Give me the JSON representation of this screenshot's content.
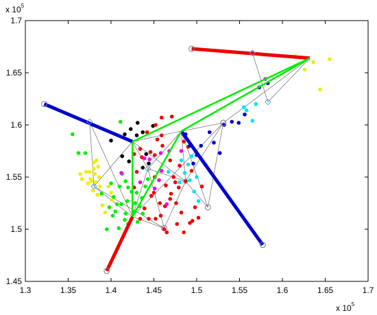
{
  "chart_data": {
    "type": "scatter",
    "title": "",
    "xlabel": "",
    "ylabel": "",
    "x_multiplier": "x 10",
    "y_multiplier": "x 10",
    "multiplier_exponent": "5",
    "xlim": [
      1.3,
      1.7
    ],
    "ylim": [
      1.45,
      1.7
    ],
    "x_ticks": [
      1.3,
      1.35,
      1.4,
      1.45,
      1.5,
      1.55,
      1.6,
      1.65,
      1.7
    ],
    "y_ticks": [
      1.45,
      1.5,
      1.55,
      1.6,
      1.65,
      1.7
    ],
    "grid": false,
    "legend": null,
    "colors": {
      "red": "#ee0000",
      "blue": "#0000cc",
      "green": "#00ee00",
      "black": "#000000",
      "magenta": "#ee00ee",
      "cyan": "#00e5ee",
      "yellow": "#eeee00",
      "gray": "#7a7a7a",
      "marker": "#7a7a90",
      "diamond": "#5aa0c8"
    },
    "clusters": [
      {
        "color": "yellow",
        "points": [
          [
            1.364,
            1.553
          ],
          [
            1.366,
            1.548
          ],
          [
            1.371,
            1.555
          ],
          [
            1.373,
            1.544
          ],
          [
            1.375,
            1.555
          ],
          [
            1.376,
            1.548
          ],
          [
            1.377,
            1.546
          ],
          [
            1.379,
            1.537
          ],
          [
            1.38,
            1.564
          ],
          [
            1.38,
            1.558
          ],
          [
            1.381,
            1.553
          ],
          [
            1.382,
            1.545
          ],
          [
            1.383,
            1.566
          ],
          [
            1.384,
            1.533
          ],
          [
            1.385,
            1.56
          ],
          [
            1.386,
            1.55
          ],
          [
            1.387,
            1.541
          ],
          [
            1.39,
            1.523
          ],
          [
            1.393,
            1.516
          ],
          [
            1.397,
            1.541
          ],
          [
            1.4,
            1.535
          ],
          [
            1.401,
            1.528
          ],
          [
            1.615,
            1.666
          ],
          [
            1.626,
            1.653
          ],
          [
            1.636,
            1.66
          ],
          [
            1.644,
            1.634
          ],
          [
            1.655,
            1.663
          ]
        ]
      },
      {
        "color": "green",
        "points": [
          [
            1.355,
            1.591
          ],
          [
            1.362,
            1.573
          ],
          [
            1.37,
            1.573
          ],
          [
            1.378,
            1.6
          ],
          [
            1.389,
            1.534
          ],
          [
            1.395,
            1.5
          ],
          [
            1.398,
            1.521
          ],
          [
            1.402,
            1.513
          ],
          [
            1.403,
            1.531
          ],
          [
            1.405,
            1.517
          ],
          [
            1.407,
            1.524
          ],
          [
            1.409,
            1.501
          ],
          [
            1.41,
            1.541
          ],
          [
            1.412,
            1.524
          ],
          [
            1.413,
            1.553
          ],
          [
            1.416,
            1.509
          ],
          [
            1.417,
            1.515
          ],
          [
            1.419,
            1.527
          ],
          [
            1.42,
            1.54
          ],
          [
            1.42,
            1.505
          ],
          [
            1.424,
            1.536
          ],
          [
            1.426,
            1.517
          ],
          [
            1.428,
            1.525
          ],
          [
            1.43,
            1.535
          ],
          [
            1.431,
            1.507
          ],
          [
            1.433,
            1.522
          ],
          [
            1.436,
            1.53
          ],
          [
            1.437,
            1.515
          ],
          [
            1.4,
            1.544
          ],
          [
            1.417,
            1.546
          ],
          [
            1.44,
            1.541
          ],
          [
            1.443,
            1.548
          ],
          [
            1.411,
            1.603
          ]
        ]
      },
      {
        "color": "black",
        "points": [
          [
            1.4,
            1.585
          ],
          [
            1.413,
            1.57
          ],
          [
            1.416,
            1.591
          ],
          [
            1.421,
            1.565
          ],
          [
            1.423,
            1.596
          ],
          [
            1.43,
            1.59
          ],
          [
            1.431,
            1.602
          ],
          [
            1.437,
            1.593
          ],
          [
            1.441,
            1.572
          ],
          [
            1.444,
            1.563
          ],
          [
            1.449,
            1.599
          ],
          [
            1.437,
            1.559
          ]
        ]
      },
      {
        "color": "red",
        "points": [
          [
            1.442,
            1.593
          ],
          [
            1.446,
            1.574
          ],
          [
            1.451,
            1.571
          ],
          [
            1.451,
            1.55
          ],
          [
            1.452,
            1.6
          ],
          [
            1.454,
            1.586
          ],
          [
            1.459,
            1.607
          ],
          [
            1.459,
            1.59
          ],
          [
            1.46,
            1.58
          ],
          [
            1.462,
            1.5
          ],
          [
            1.464,
            1.542
          ],
          [
            1.463,
            1.522
          ],
          [
            1.469,
            1.566
          ],
          [
            1.469,
            1.529
          ],
          [
            1.471,
            1.608
          ],
          [
            1.473,
            1.55
          ],
          [
            1.475,
            1.545
          ],
          [
            1.476,
            1.525
          ],
          [
            1.477,
            1.505
          ],
          [
            1.48,
            1.561
          ],
          [
            1.482,
            1.516
          ],
          [
            1.485,
            1.584
          ],
          [
            1.487,
            1.546
          ],
          [
            1.49,
            1.579
          ],
          [
            1.492,
            1.506
          ],
          [
            1.494,
            1.556
          ],
          [
            1.495,
            1.508
          ],
          [
            1.498,
            1.521
          ],
          [
            1.502,
            1.511
          ],
          [
            1.506,
            1.541
          ],
          [
            1.51,
            1.562
          ],
          [
            1.465,
            1.497
          ],
          [
            1.47,
            1.534
          ],
          [
            1.479,
            1.54
          ],
          [
            1.485,
            1.497
          ],
          [
            1.457,
            1.525
          ],
          [
            1.458,
            1.513
          ],
          [
            1.452,
            1.51
          ],
          [
            1.444,
            1.51
          ],
          [
            1.434,
            1.51
          ],
          [
            1.439,
            1.52
          ],
          [
            1.447,
            1.532
          ],
          [
            1.45,
            1.535
          ],
          [
            1.427,
            1.572
          ],
          [
            1.434,
            1.577
          ],
          [
            1.436,
            1.569
          ],
          [
            1.43,
            1.555
          ],
          [
            1.427,
            1.54
          ]
        ]
      },
      {
        "color": "magenta",
        "points": [
          [
            1.412,
            1.554
          ],
          [
            1.434,
            1.545
          ],
          [
            1.439,
            1.568
          ],
          [
            1.445,
            1.567
          ],
          [
            1.451,
            1.539
          ],
          [
            1.456,
            1.547
          ],
          [
            1.458,
            1.573
          ],
          [
            1.459,
            1.556
          ],
          [
            1.465,
            1.524
          ],
          [
            1.468,
            1.575
          ],
          [
            1.482,
            1.575
          ],
          [
            1.565,
            1.669
          ],
          [
            1.58,
            1.644
          ]
        ]
      },
      {
        "color": "cyan",
        "points": [
          [
            1.467,
            1.555
          ],
          [
            1.48,
            1.545
          ],
          [
            1.482,
            1.566
          ],
          [
            1.486,
            1.554
          ],
          [
            1.49,
            1.562
          ],
          [
            1.492,
            1.547
          ],
          [
            1.494,
            1.57
          ],
          [
            1.497,
            1.536
          ],
          [
            1.5,
            1.55
          ],
          [
            1.502,
            1.527
          ],
          [
            1.555,
            1.617
          ],
          [
            1.558,
            1.614
          ],
          [
            1.565,
            1.604
          ],
          [
            1.569,
            1.62
          ]
        ]
      },
      {
        "color": "blue",
        "points": [
          [
            1.487,
            1.591
          ],
          [
            1.492,
            1.58
          ],
          [
            1.496,
            1.563
          ],
          [
            1.5,
            1.571
          ],
          [
            1.505,
            1.58
          ],
          [
            1.515,
            1.593
          ],
          [
            1.52,
            1.583
          ],
          [
            1.527,
            1.573
          ],
          [
            1.532,
            1.6
          ],
          [
            1.541,
            1.603
          ],
          [
            1.549,
            1.602
          ],
          [
            1.556,
            1.61
          ],
          [
            1.573,
            1.636
          ],
          [
            1.583,
            1.64
          ]
        ]
      }
    ],
    "mesh_nodes": [
      [
        1.322,
        1.62
      ],
      [
        1.375,
        1.603
      ],
      [
        1.38,
        1.541
      ],
      [
        1.425,
        1.584
      ],
      [
        1.425,
        1.512
      ],
      [
        1.443,
        1.558
      ],
      [
        1.462,
        1.501
      ],
      [
        1.482,
        1.594
      ],
      [
        1.487,
        1.546
      ],
      [
        1.513,
        1.521
      ],
      [
        1.531,
        1.602
      ],
      [
        1.583,
        1.622
      ],
      [
        1.565,
        1.669
      ],
      [
        1.632,
        1.664
      ],
      [
        1.494,
        1.673
      ],
      [
        1.395,
        1.46
      ],
      [
        1.577,
        1.485
      ]
    ],
    "mesh_edges": [
      [
        0,
        3
      ],
      [
        1,
        3
      ],
      [
        1,
        2
      ],
      [
        2,
        3
      ],
      [
        3,
        4
      ],
      [
        3,
        7
      ],
      [
        3,
        13
      ],
      [
        3,
        5
      ],
      [
        4,
        5
      ],
      [
        4,
        6
      ],
      [
        4,
        7
      ],
      [
        5,
        6
      ],
      [
        5,
        7
      ],
      [
        7,
        8
      ],
      [
        7,
        9
      ],
      [
        7,
        10
      ],
      [
        8,
        9
      ],
      [
        8,
        10
      ],
      [
        9,
        10
      ],
      [
        10,
        13
      ],
      [
        11,
        13
      ],
      [
        11,
        12
      ],
      [
        12,
        13
      ],
      [
        13,
        14
      ],
      [
        4,
        15
      ],
      [
        7,
        16
      ],
      [
        2,
        4
      ],
      [
        6,
        8
      ],
      [
        1,
        4
      ],
      [
        5,
        8
      ],
      [
        4,
        10
      ],
      [
        7,
        13
      ],
      [
        3,
        8
      ],
      [
        2,
        6
      ]
    ],
    "diamond_nodes": [
      1,
      2,
      5,
      8,
      11,
      12
    ],
    "circle_nodes": [
      0,
      6,
      9,
      10,
      14,
      15,
      16
    ],
    "thick_segments": [
      {
        "color": "blue",
        "width": 5,
        "points": [
          [
            1.322,
            1.62
          ],
          [
            1.425,
            1.584
          ]
        ]
      },
      {
        "color": "blue",
        "width": 5,
        "points": [
          [
            1.482,
            1.594
          ],
          [
            1.577,
            1.485
          ]
        ]
      },
      {
        "color": "red",
        "width": 5,
        "points": [
          [
            1.425,
            1.512
          ],
          [
            1.395,
            1.46
          ]
        ]
      },
      {
        "color": "red",
        "width": 5,
        "points": [
          [
            1.494,
            1.673
          ],
          [
            1.632,
            1.664
          ]
        ]
      },
      {
        "color": "green",
        "width": 2.5,
        "points": [
          [
            1.425,
            1.584
          ],
          [
            1.632,
            1.664
          ]
        ]
      },
      {
        "color": "green",
        "width": 2.5,
        "points": [
          [
            1.425,
            1.584
          ],
          [
            1.425,
            1.512
          ]
        ]
      },
      {
        "color": "green",
        "width": 2.5,
        "points": [
          [
            1.425,
            1.512
          ],
          [
            1.482,
            1.594
          ]
        ]
      },
      {
        "color": "green",
        "width": 2.5,
        "points": [
          [
            1.482,
            1.594
          ],
          [
            1.632,
            1.664
          ]
        ]
      }
    ]
  }
}
